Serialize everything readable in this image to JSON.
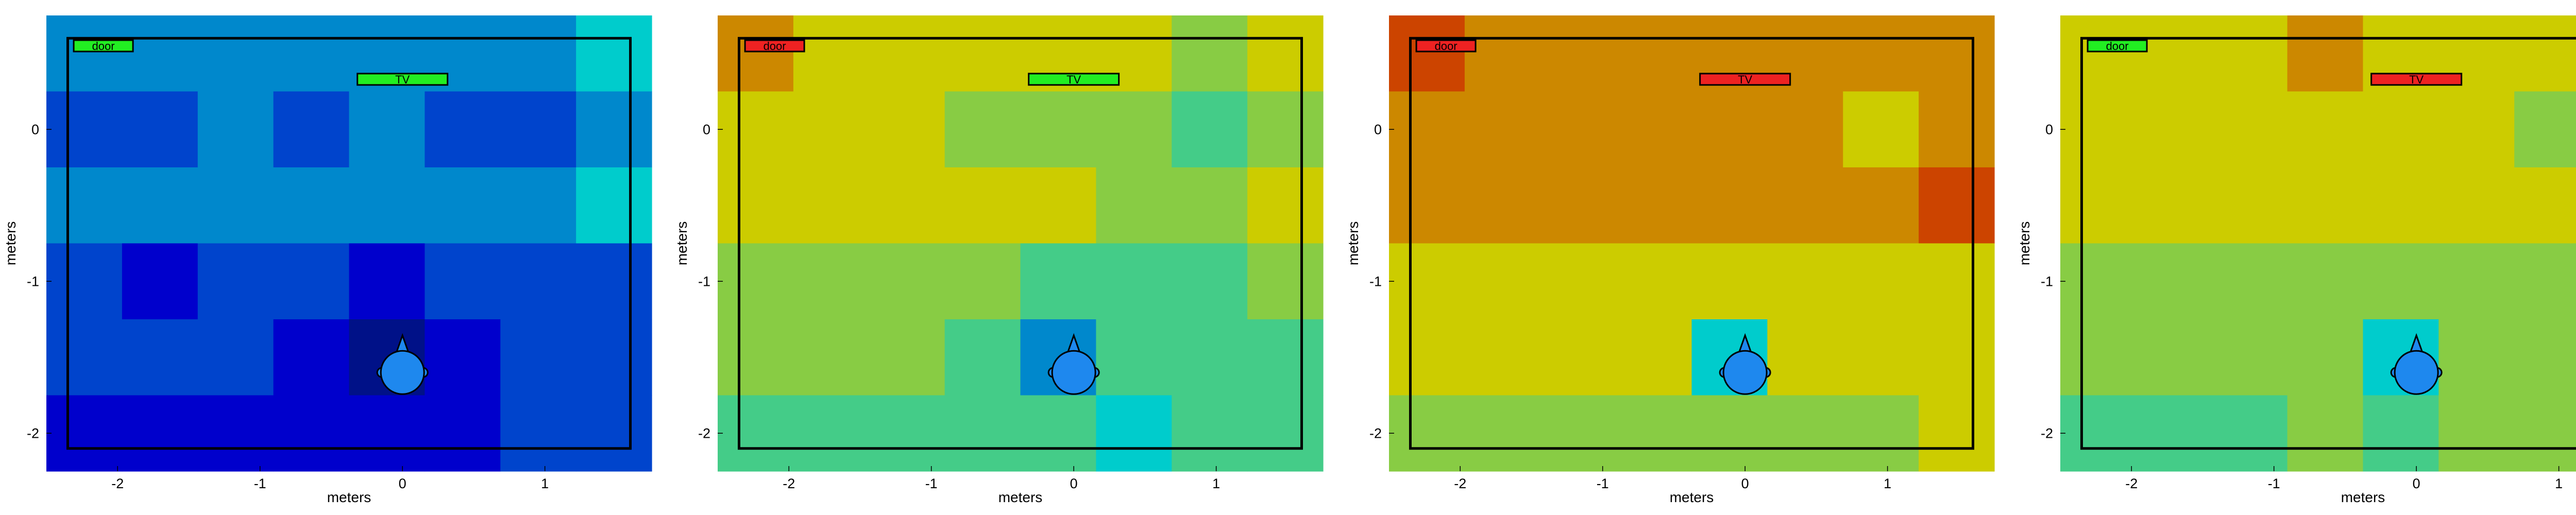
{
  "chart_data": [
    {
      "type": "heatmap",
      "xlabel": "meters",
      "ylabel": "meters",
      "xlim": [
        -2.5,
        1.75
      ],
      "ylim": [
        -2.25,
        0.75
      ],
      "xticks": [
        "-2",
        "-1",
        "0",
        "1"
      ],
      "yticks": [
        "0",
        "-1",
        "-2"
      ],
      "room_boundary": {
        "x": [
          -2.35,
          1.6
        ],
        "y": [
          -2.1,
          0.6
        ]
      },
      "cell_colors": {
        "a": "#0000cc",
        "b": "#0044cc",
        "c": "#0088cc",
        "d": "#00cccc",
        "n": "#001188"
      },
      "grid": [
        "ccccccccccccccccccccccccccccccccccccccccccccccccccccccccccccddddddd",
        "bbbbbbbbbbbbbbbbcccccccccbbbbbbbbcccccccccbbbbbbbbbbbbbbbbbbbbbccccccc",
        "ccccccccccccccccccccccccccccccccccccccccccccccccccccccccccccddddddd",
        "bbbbbbaaaaaabbbbbbbbbbbbbbaaaaaaabbbbbbbbbbbbbbbbbbbbbbbbbbbbbbbbbbb",
        "bbbbbbbbbbbbbbbbbbbbbbbbbbnnnnnnnnaaaaabbbbbbbbbbbbbbbbbbbbbbbbbbbbb",
        "aaaaaaaaaaaaaaaaaaaaaaaaaaaaaaaaaaaaaaaaaaaaaaaaaaaabbbbbbbbbbbbbbbb"
      ],
      "rows": [
        [
          "c",
          "c",
          "c",
          "c",
          "c",
          "c",
          "c",
          "d"
        ],
        [
          "b",
          "b",
          "c",
          "b",
          "c",
          "b",
          "b",
          "c"
        ],
        [
          "c",
          "c",
          "c",
          "c",
          "c",
          "c",
          "c",
          "d"
        ],
        [
          "b",
          "a",
          "b",
          "b",
          "a",
          "b",
          "b",
          "b"
        ],
        [
          "b",
          "b",
          "b",
          "a",
          "n",
          "a",
          "b",
          "b"
        ],
        [
          "a",
          "a",
          "a",
          "a",
          "a",
          "a",
          "b",
          "b"
        ]
      ],
      "labels": [
        {
          "text": "door",
          "x": -2.1,
          "y": 0.55,
          "color": "#22ee22"
        },
        {
          "text": "TV",
          "x": 0.0,
          "y": 0.33,
          "color": "#22ee22"
        }
      ]
    },
    {
      "type": "heatmap",
      "xlabel": "meters",
      "ylabel": "meters",
      "xlim": [
        -2.5,
        1.75
      ],
      "ylim": [
        -2.25,
        0.75
      ],
      "xticks": [
        "-2",
        "-1",
        "0",
        "1"
      ],
      "yticks": [
        "0",
        "-1",
        "-2"
      ],
      "room_boundary": {
        "x": [
          -2.35,
          1.6
        ],
        "y": [
          -2.1,
          0.6
        ]
      },
      "cell_colors": {
        "y": "#cccc00",
        "o": "#cc8800",
        "g": "#88cc44",
        "t": "#44cc88",
        "d": "#00cccc",
        "c": "#0088cc"
      },
      "rows": [
        [
          "o",
          "y",
          "y",
          "y",
          "y",
          "y",
          "g",
          "y"
        ],
        [
          "y",
          "y",
          "y",
          "g",
          "g",
          "g",
          "t",
          "g"
        ],
        [
          "y",
          "y",
          "y",
          "y",
          "y",
          "g",
          "g",
          "y"
        ],
        [
          "g",
          "g",
          "g",
          "g",
          "t",
          "t",
          "t",
          "g"
        ],
        [
          "g",
          "g",
          "g",
          "t",
          "c",
          "t",
          "t",
          "t"
        ],
        [
          "t",
          "t",
          "t",
          "t",
          "t",
          "d",
          "t",
          "t"
        ]
      ],
      "labels": [
        {
          "text": "door",
          "x": -2.1,
          "y": 0.55,
          "color": "#ee2222"
        },
        {
          "text": "TV",
          "x": 0.0,
          "y": 0.33,
          "color": "#22ee22"
        }
      ]
    },
    {
      "type": "heatmap",
      "xlabel": "meters",
      "ylabel": "meters",
      "xlim": [
        -2.5,
        1.75
      ],
      "ylim": [
        -2.25,
        0.75
      ],
      "xticks": [
        "-2",
        "-1",
        "0",
        "1"
      ],
      "yticks": [
        "0",
        "-1",
        "-2"
      ],
      "room_boundary": {
        "x": [
          -2.35,
          1.6
        ],
        "y": [
          -2.1,
          0.6
        ]
      },
      "cell_colors": {
        "r": "#cc4400",
        "o": "#cc8800",
        "y": "#cccc00",
        "g": "#88cc44",
        "d": "#00cccc"
      },
      "rows": [
        [
          "r",
          "o",
          "o",
          "o",
          "o",
          "o",
          "o",
          "o"
        ],
        [
          "o",
          "o",
          "o",
          "o",
          "o",
          "o",
          "y",
          "o"
        ],
        [
          "o",
          "o",
          "o",
          "o",
          "o",
          "o",
          "o",
          "r"
        ],
        [
          "y",
          "y",
          "y",
          "y",
          "y",
          "y",
          "y",
          "y"
        ],
        [
          "y",
          "y",
          "y",
          "y",
          "d",
          "y",
          "y",
          "y"
        ],
        [
          "g",
          "g",
          "g",
          "g",
          "g",
          "g",
          "g",
          "y"
        ]
      ],
      "labels": [
        {
          "text": "door",
          "x": -2.1,
          "y": 0.55,
          "color": "#ee2222"
        },
        {
          "text": "TV",
          "x": 0.0,
          "y": 0.33,
          "color": "#ee2222"
        }
      ]
    },
    {
      "type": "heatmap",
      "xlabel": "meters",
      "ylabel": "meters",
      "xlim": [
        -2.5,
        1.75
      ],
      "ylim": [
        -2.25,
        0.75
      ],
      "xticks": [
        "-2",
        "-1",
        "0",
        "1"
      ],
      "yticks": [
        "0",
        "-1",
        "-2"
      ],
      "room_boundary": {
        "x": [
          -2.35,
          1.6
        ],
        "y": [
          -2.1,
          0.6
        ]
      },
      "cell_colors": {
        "o": "#cc8800",
        "y": "#cccc00",
        "g": "#88cc44",
        "t": "#44cc88",
        "d": "#00cccc"
      },
      "rows": [
        [
          "y",
          "y",
          "y",
          "o",
          "y",
          "y",
          "y",
          "o"
        ],
        [
          "y",
          "y",
          "y",
          "y",
          "y",
          "y",
          "g",
          "y"
        ],
        [
          "y",
          "y",
          "y",
          "y",
          "y",
          "y",
          "y",
          "o"
        ],
        [
          "g",
          "g",
          "g",
          "g",
          "g",
          "g",
          "g",
          "g"
        ],
        [
          "g",
          "g",
          "g",
          "g",
          "d",
          "g",
          "g",
          "g"
        ],
        [
          "t",
          "t",
          "t",
          "g",
          "t",
          "g",
          "g",
          "g"
        ]
      ],
      "labels": [
        {
          "text": "door",
          "x": -2.1,
          "y": 0.55,
          "color": "#22ee22"
        },
        {
          "text": "TV",
          "x": 0.0,
          "y": 0.33,
          "color": "#ee2222"
        }
      ]
    }
  ]
}
